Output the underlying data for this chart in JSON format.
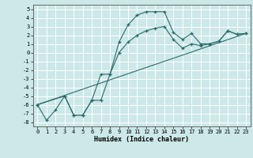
{
  "title": "",
  "xlabel": "Humidex (Indice chaleur)",
  "bg_color": "#cce8e8",
  "grid_color": "#ffffff",
  "line_color": "#2d6b6b",
  "xlim": [
    -0.5,
    23.5
  ],
  "ylim": [
    -8.5,
    5.5
  ],
  "yticks": [
    5,
    4,
    3,
    2,
    1,
    0,
    -1,
    -2,
    -3,
    -4,
    -5,
    -6,
    -7,
    -8
  ],
  "xticks": [
    0,
    1,
    2,
    3,
    4,
    5,
    6,
    7,
    8,
    9,
    10,
    11,
    12,
    13,
    14,
    15,
    16,
    17,
    18,
    19,
    20,
    21,
    22,
    23
  ],
  "xtick_labels": [
    "0",
    "1",
    "2",
    "3",
    "4",
    "5",
    "6",
    "7",
    "8",
    "9",
    "10",
    "11",
    "12",
    "13",
    "14",
    "15",
    "16",
    "17",
    "18",
    "19",
    "20",
    "21",
    "22",
    "23"
  ],
  "series1_x": [
    0,
    1,
    2,
    3,
    4,
    5,
    6,
    7,
    8,
    9,
    10,
    11,
    12,
    13,
    14,
    15,
    16,
    17,
    18,
    19,
    20,
    21,
    22,
    23
  ],
  "series1_y": [
    -6.0,
    -7.8,
    -6.6,
    -5.0,
    -7.2,
    -7.2,
    -5.5,
    -5.5,
    -2.5,
    1.2,
    3.2,
    4.3,
    4.7,
    4.7,
    4.7,
    2.3,
    1.5,
    2.2,
    1.0,
    1.0,
    1.3,
    2.5,
    2.1,
    2.2
  ],
  "series2_x": [
    0,
    3,
    4,
    5,
    6,
    7,
    8,
    9,
    10,
    11,
    12,
    13,
    14,
    15,
    16,
    17,
    18,
    19,
    20,
    21,
    22,
    23
  ],
  "series2_y": [
    -6.0,
    -5.0,
    -7.2,
    -7.2,
    -5.5,
    -2.5,
    -2.5,
    0.0,
    1.2,
    2.0,
    2.5,
    2.8,
    3.0,
    1.5,
    0.5,
    1.0,
    0.8,
    1.0,
    1.3,
    2.5,
    2.1,
    2.2
  ],
  "ref_line_x": [
    0,
    23
  ],
  "ref_line_y": [
    -6.0,
    2.2
  ]
}
